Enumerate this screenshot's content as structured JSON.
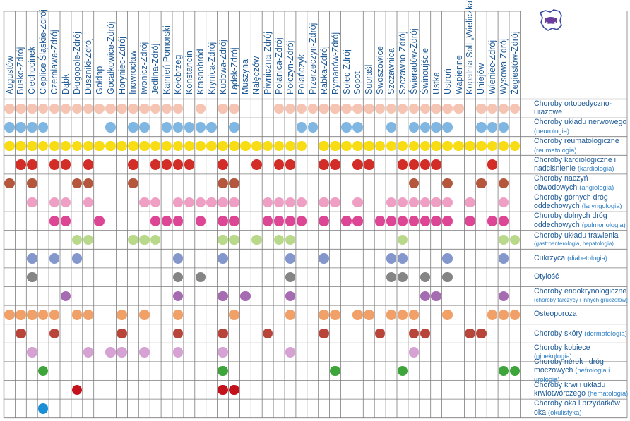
{
  "towns": [
    "Augustów",
    "Busko-Zdrój",
    "Ciechocinek",
    "Cieplice Śląskie-Zdrój",
    "Czerniawa-Zdrój",
    "Dąbki",
    "Długopole-Zdrój",
    "Duszniki-Zdrój",
    "Gołdap",
    "Gocałkowice-Zdrój",
    "Horyniec-Zdrój",
    "Inowrocław",
    "Iwonicz-Zdrój",
    "Jedlina-Zdrój",
    "Kamień Pomorski",
    "Kołobrzeg",
    "Konstancin",
    "Krasnobród",
    "Krynica-Zdrój",
    "Kudowa-Zdrój",
    "Lądek-Zdrój",
    "Muszyna",
    "Nałęczów",
    "Piwniczna-Zdrój",
    "Polanica-Zdrój",
    "Połczyn-Zdrój",
    "Polańczyk",
    "Przerzeczyn-Zdrój",
    "Rabka-Zdrój",
    "Rymanów-Zdrój",
    "Solec-Zdrój",
    "Sopot",
    "Supraśl",
    "Swoszowice",
    "Szczawnica",
    "Szczawno-Zdrój",
    "Świeradów-Zdrój",
    "Świnoujście",
    "Ustka",
    "Ustroń",
    "Wapienne",
    "Kopalnia Soli „Wieliczka”",
    "Uniejów",
    "Wieniec-Zdrój",
    "Wysowa-Zdrój",
    "Żegiestów-Zdrój"
  ],
  "diseases": [
    {
      "name": "Choroby ortopedyczno-urazowe",
      "sub": "",
      "color": "#f5c4b2",
      "cols": [
        0,
        1,
        2,
        3,
        4,
        5,
        6,
        7,
        8,
        9,
        10,
        11,
        12,
        13,
        14,
        15,
        17,
        19,
        20,
        24,
        25,
        26,
        27,
        28,
        29,
        30,
        31,
        32,
        33,
        34,
        35,
        36,
        37,
        38,
        39,
        40,
        42,
        43,
        44,
        45
      ]
    },
    {
      "name": "Choroby układu nerwowego",
      "sub": "(neurologia)",
      "color": "#7fb6e2",
      "cols": [
        0,
        1,
        2,
        3,
        9,
        11,
        12,
        14,
        15,
        16,
        17,
        18,
        20,
        26,
        27,
        30,
        31,
        34,
        36,
        37,
        38,
        39,
        42,
        43,
        44
      ]
    },
    {
      "name": "Choroby reumatologiczne",
      "sub": "(reumatologia)",
      "color": "#f8dc14",
      "cols": [
        0,
        1,
        2,
        3,
        4,
        5,
        6,
        7,
        8,
        9,
        10,
        11,
        12,
        13,
        14,
        15,
        16,
        17,
        18,
        19,
        20,
        21,
        22,
        23,
        24,
        25,
        26,
        28,
        29,
        30,
        31,
        32,
        33,
        34,
        35,
        36,
        37,
        38,
        39,
        40,
        41,
        42,
        43,
        44,
        45
      ]
    },
    {
      "name": "Choroby kardiologiczne i nadciśnienie",
      "sub": "(kardiologia)",
      "color": "#d22d27",
      "cols": [
        1,
        2,
        4,
        5,
        7,
        11,
        13,
        14,
        15,
        16,
        19,
        22,
        24,
        25,
        28,
        29,
        31,
        32,
        35,
        36,
        37,
        38,
        43
      ]
    },
    {
      "name": "Choroby naczyń obwodowych",
      "sub": "(angiologia)",
      "color": "#b5573c",
      "cols": [
        0,
        2,
        6,
        7,
        11,
        19,
        20,
        36,
        39,
        42,
        44
      ]
    },
    {
      "name": "Choroby górnych dróg oddechowych",
      "sub": "(laryngologia)",
      "color": "#ef9fc4",
      "cols": [
        2,
        4,
        5,
        7,
        12,
        13,
        15,
        16,
        17,
        18,
        19,
        20,
        23,
        24,
        25,
        26,
        28,
        29,
        31,
        34,
        35,
        36,
        37,
        38,
        39,
        41,
        44
      ]
    },
    {
      "name": "Choroby dolnych dróg oddechowych",
      "sub": "(pulmonologia)",
      "color": "#dd4595",
      "cols": [
        4,
        5,
        8,
        13,
        14,
        15,
        17,
        19,
        20,
        23,
        24,
        25,
        26,
        28,
        30,
        31,
        33,
        34,
        35,
        36,
        37,
        38,
        39,
        41,
        43,
        44
      ]
    },
    {
      "name": "Choroby układu trawienia",
      "sub": "(gastroenterologia, hepatologia)",
      "color": "#b9d98a",
      "cols": [
        6,
        7,
        11,
        12,
        13,
        19,
        20,
        22,
        24,
        25,
        35,
        44,
        45
      ]
    },
    {
      "name": "Cukrzyca",
      "sub": "(diabetologia)",
      "color": "#8497cc",
      "cols": [
        2,
        4,
        6,
        15,
        19,
        25,
        28,
        34,
        35,
        39,
        44
      ]
    },
    {
      "name": "Otyłość",
      "sub": "",
      "color": "#858585",
      "cols": [
        2,
        15,
        17,
        25,
        34,
        35,
        37,
        39
      ]
    },
    {
      "name": "Choroby endokrynologiczne",
      "sub": "(choroby tarczycy i innych gruczołów)",
      "color": "#a66cb2",
      "cols": [
        5,
        15,
        19,
        21,
        25,
        37,
        38,
        44
      ]
    },
    {
      "name": "Osteoporoza",
      "sub": "",
      "color": "#f1a067",
      "cols": [
        0,
        1,
        2,
        3,
        4,
        6,
        7,
        10,
        12,
        15,
        20,
        25,
        28,
        29,
        31,
        32,
        34,
        35,
        36,
        39,
        43,
        44,
        45
      ]
    },
    {
      "name": "Choroby skóry",
      "sub": "(dermatologia)",
      "color": "#b8443a",
      "cols": [
        1,
        4,
        10,
        15,
        19,
        23,
        28,
        33,
        36,
        37,
        41,
        42
      ]
    },
    {
      "name": "Choroby kobiece",
      "sub": "(ginekologia)",
      "color": "#d6a2d4",
      "cols": [
        2,
        7,
        9,
        10,
        12,
        15,
        19,
        25,
        36
      ]
    },
    {
      "name": "Choroby nerek i dróg moczowych",
      "sub": "(nefrologia i urologia)",
      "color": "#3ea53a",
      "cols": [
        3,
        19,
        29,
        35,
        44,
        45
      ]
    },
    {
      "name": "Choroby krwi i układu krwiotwórczego",
      "sub": "(hematologia)",
      "color": "#c4121c",
      "cols": [
        6,
        19,
        20
      ]
    },
    {
      "name": "Choroby oka i przydatków oka",
      "sub": "(okulistyka)",
      "color": "#1b8ed6",
      "cols": [
        3
      ]
    }
  ]
}
